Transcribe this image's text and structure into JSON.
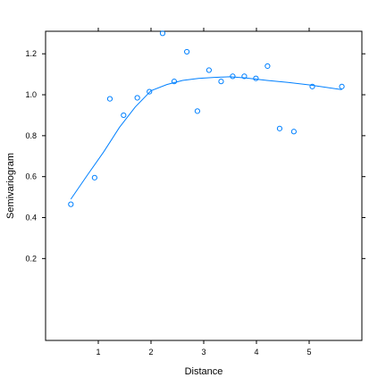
{
  "chart_data": {
    "type": "scatter",
    "title": "",
    "xlabel": "Distance",
    "ylabel": "Semivariogram",
    "xlim": [
      0.0,
      6.0
    ],
    "ylim": [
      -0.2,
      1.31
    ],
    "xticks": [
      1,
      2,
      3,
      4,
      5
    ],
    "xtick_labels": [
      "1",
      "2",
      "3",
      "4",
      "5"
    ],
    "yticks": [
      0.2,
      0.4,
      0.6,
      0.8,
      1.0,
      1.2
    ],
    "ytick_labels": [
      "0.2",
      "0.4",
      "0.6",
      "0.8",
      "1.0",
      "1.2"
    ],
    "grid": false,
    "points": [
      {
        "x": 0.48,
        "y": 0.465
      },
      {
        "x": 0.93,
        "y": 0.595
      },
      {
        "x": 1.22,
        "y": 0.98
      },
      {
        "x": 1.48,
        "y": 0.9
      },
      {
        "x": 1.74,
        "y": 0.985
      },
      {
        "x": 1.97,
        "y": 1.015
      },
      {
        "x": 2.22,
        "y": 1.3
      },
      {
        "x": 2.44,
        "y": 1.065
      },
      {
        "x": 2.68,
        "y": 1.21
      },
      {
        "x": 2.88,
        "y": 0.92
      },
      {
        "x": 3.1,
        "y": 1.12
      },
      {
        "x": 3.33,
        "y": 1.065
      },
      {
        "x": 3.55,
        "y": 1.09
      },
      {
        "x": 3.77,
        "y": 1.09
      },
      {
        "x": 3.99,
        "y": 1.08
      },
      {
        "x": 4.21,
        "y": 1.14
      },
      {
        "x": 4.44,
        "y": 0.835
      },
      {
        "x": 4.71,
        "y": 0.82
      },
      {
        "x": 5.06,
        "y": 1.04
      },
      {
        "x": 5.62,
        "y": 1.04
      }
    ],
    "smooth_curve": [
      {
        "x": 0.48,
        "y": 0.49
      },
      {
        "x": 0.8,
        "y": 0.61
      },
      {
        "x": 1.1,
        "y": 0.72
      },
      {
        "x": 1.4,
        "y": 0.84
      },
      {
        "x": 1.7,
        "y": 0.94
      },
      {
        "x": 2.0,
        "y": 1.02
      },
      {
        "x": 2.3,
        "y": 1.05
      },
      {
        "x": 2.6,
        "y": 1.07
      },
      {
        "x": 2.9,
        "y": 1.08
      },
      {
        "x": 3.2,
        "y": 1.085
      },
      {
        "x": 3.5,
        "y": 1.088
      },
      {
        "x": 3.8,
        "y": 1.082
      },
      {
        "x": 4.2,
        "y": 1.07
      },
      {
        "x": 4.6,
        "y": 1.06
      },
      {
        "x": 5.0,
        "y": 1.048
      },
      {
        "x": 5.62,
        "y": 1.025
      }
    ],
    "colors": {
      "points": "#0080ff",
      "curve": "#0080ff",
      "frame": "#000000"
    }
  }
}
